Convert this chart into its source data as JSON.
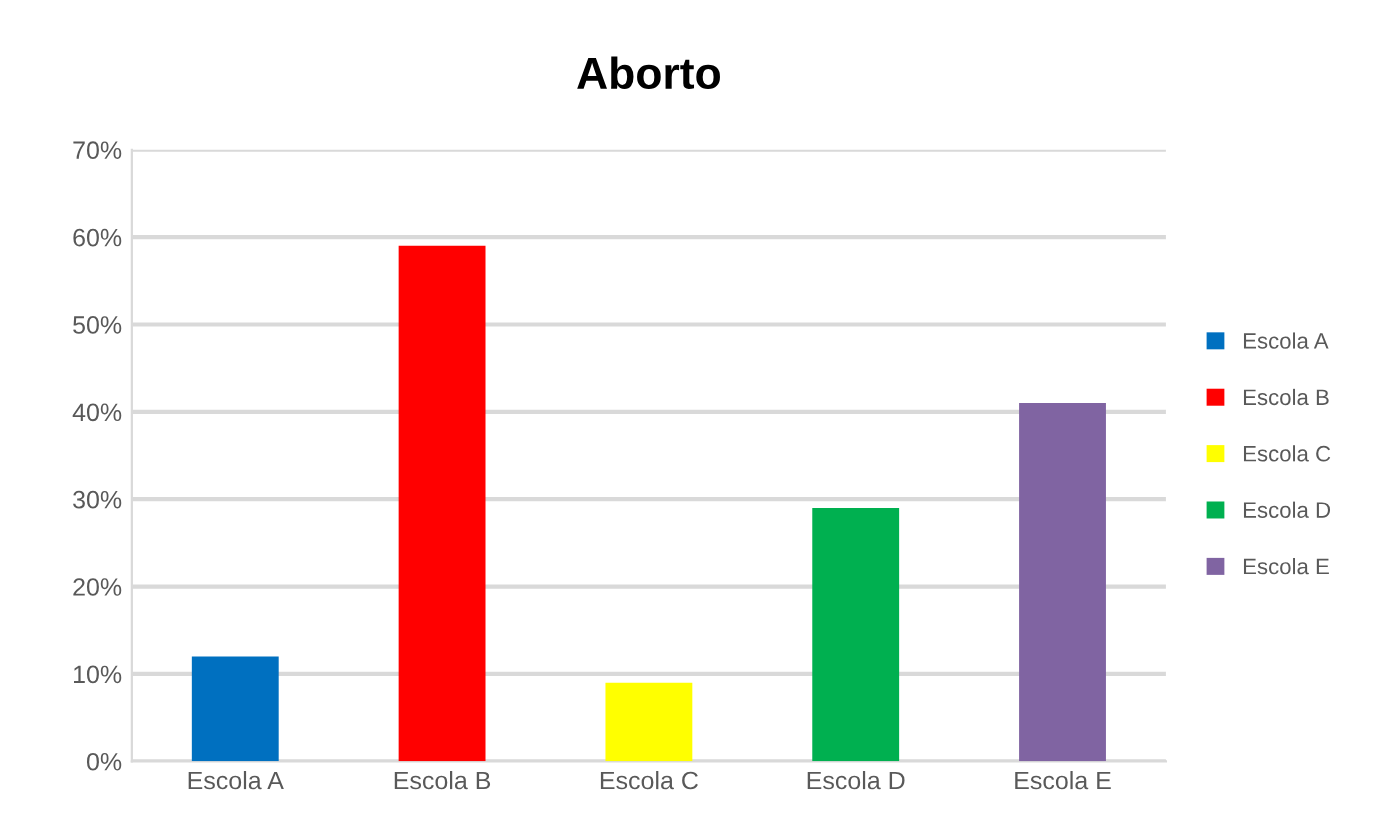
{
  "chart_data": {
    "type": "bar",
    "title": "Aborto",
    "categories": [
      "Escola A",
      "Escola B",
      "Escola C",
      "Escola D",
      "Escola E"
    ],
    "series": [
      {
        "name": "Escola A",
        "color": "#0070c0",
        "values": [
          12,
          null,
          null,
          null,
          null
        ]
      },
      {
        "name": "Escola B",
        "color": "#ff0000",
        "values": [
          null,
          59,
          null,
          null,
          null
        ]
      },
      {
        "name": "Escola C",
        "color": "#ffff00",
        "values": [
          null,
          null,
          9,
          null,
          null
        ]
      },
      {
        "name": "Escola D",
        "color": "#00b050",
        "values": [
          null,
          null,
          null,
          29,
          null
        ]
      },
      {
        "name": "Escola E",
        "color": "#8064a2",
        "values": [
          null,
          null,
          null,
          null,
          41
        ]
      }
    ],
    "ylim": [
      0,
      70
    ],
    "yticks": [
      {
        "value": 0,
        "label": "0%"
      },
      {
        "value": 10,
        "label": "10%"
      },
      {
        "value": 20,
        "label": "20%"
      },
      {
        "value": 30,
        "label": "30%"
      },
      {
        "value": 40,
        "label": "40%"
      },
      {
        "value": 50,
        "label": "50%"
      },
      {
        "value": 60,
        "label": "60%"
      },
      {
        "value": 70,
        "label": "70%"
      }
    ],
    "grid": "y",
    "legend": "right"
  }
}
